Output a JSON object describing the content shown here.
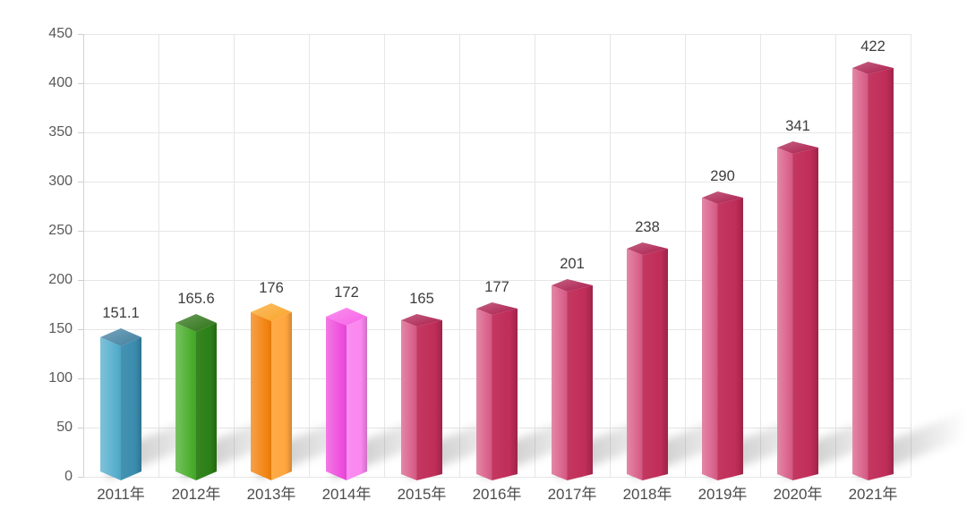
{
  "chart_data": {
    "type": "bar",
    "title": "",
    "xlabel": "",
    "ylabel": "",
    "categories": [
      "2011年",
      "2012年",
      "2013年",
      "2014年",
      "2015年",
      "2016年",
      "2017年",
      "2018年",
      "2019年",
      "2020年",
      "2021年"
    ],
    "values": [
      151.1,
      165.6,
      176,
      172,
      165,
      177,
      201,
      238,
      290,
      341,
      422
    ],
    "value_labels": [
      "151.1",
      "165.6",
      "176",
      "172",
      "165",
      "177",
      "201",
      "238",
      "290",
      "341",
      "422"
    ],
    "y_axis": {
      "min": 0,
      "max": 450,
      "step": 50,
      "tick_labels": [
        "450",
        "400",
        "350",
        "300",
        "250",
        "200",
        "150",
        "100",
        "50",
        "0"
      ]
    },
    "grid": "horizontal-and-vertical",
    "legend": "none",
    "bar_style": "3d-column-corner-view",
    "bar_colors": [
      {
        "left": "#55aecd",
        "right": "#3a8cae",
        "top": "#3f7f9f"
      },
      {
        "left": "#4aad2c",
        "right": "#2b7f16",
        "top": "#2c7214"
      },
      {
        "left": "#f2820e",
        "right": "#ffa63e",
        "top": "#f9a326"
      },
      {
        "left": "#ee4cdc",
        "right": "#fb87f0",
        "top": "#f761e7"
      },
      {
        "left": "#d9608a",
        "right": "#c02d59",
        "top": "#ab1d4d"
      },
      {
        "left": "#d9608a",
        "right": "#c02d59",
        "top": "#ab1d4d"
      },
      {
        "left": "#d9608a",
        "right": "#c02d59",
        "top": "#ab1d4d"
      },
      {
        "left": "#d9608a",
        "right": "#c02d59",
        "top": "#ab1d4d"
      },
      {
        "left": "#d9608a",
        "right": "#c02d59",
        "top": "#ab1d4d"
      },
      {
        "left": "#d9608a",
        "right": "#c02d59",
        "top": "#ab1d4d"
      },
      {
        "left": "#d9608a",
        "right": "#c02d59",
        "top": "#ab1d4d"
      }
    ],
    "text_colors": {
      "axis": "#595959",
      "category": "#4c4c4c",
      "value": "#3c3c3c"
    },
    "grid_color": "#e6e6e6",
    "background": "#ffffff"
  }
}
